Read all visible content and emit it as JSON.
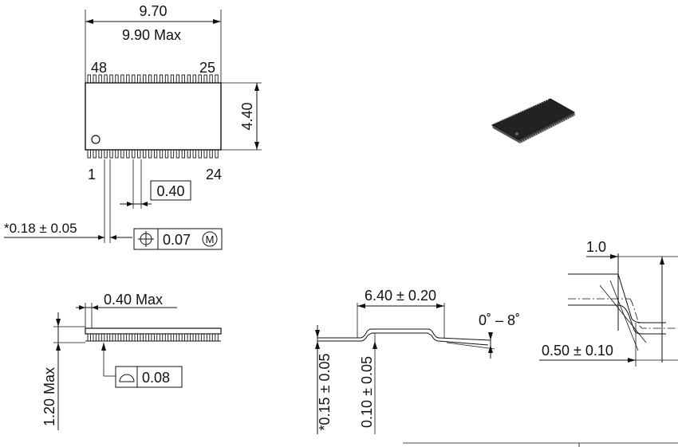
{
  "top_view": {
    "length_nominal": "9.70",
    "length_max": "9.90 Max",
    "width": "4.40",
    "pin_top_left": "48",
    "pin_top_right": "25",
    "pin_bottom_left": "1",
    "pin_bottom_right": "24",
    "pitch": "0.40",
    "lead_width": "*0.18 ± 0.05",
    "position_tolerance": "0.07",
    "position_modifier": "M"
  },
  "side_view": {
    "standoff_max": "0.40 Max",
    "height_max": "1.20 Max",
    "coplanarity": "0.08"
  },
  "end_view": {
    "span": "6.40 ± 0.20",
    "angle": "0˚ – 8˚",
    "lead_thickness": "*0.15 ± 0.05",
    "standoff": "0.10 ± 0.05"
  },
  "detail_view": {
    "foot_length": "1.0",
    "lead_length": "0.50 ± 0.10"
  }
}
